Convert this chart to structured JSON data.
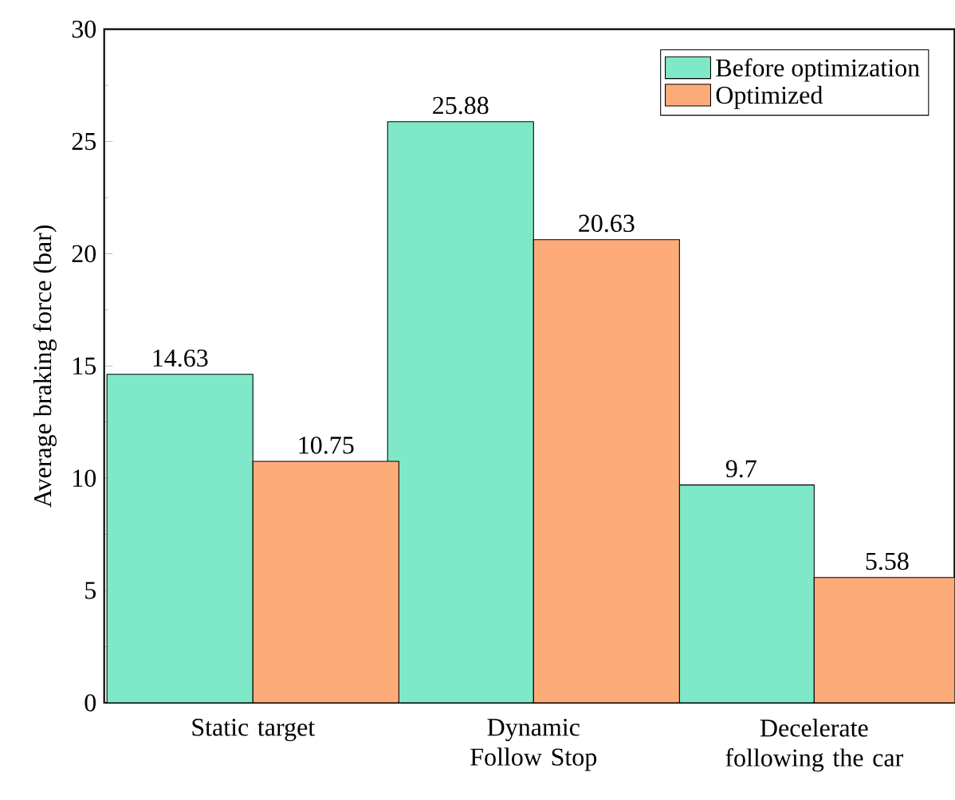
{
  "chart_data": {
    "type": "bar",
    "ylabel": "Average braking force (bar)",
    "categories": [
      "Static target",
      "Dynamic Follow Stop",
      "Decelerate following the car"
    ],
    "series": [
      {
        "name": "Before optimization",
        "color": "#7fe8c8",
        "values": [
          14.63,
          25.88,
          9.7
        ]
      },
      {
        "name": "Optimized",
        "color": "#fdab78",
        "values": [
          10.75,
          20.63,
          5.58
        ]
      }
    ],
    "ylim": [
      0,
      30
    ],
    "yticks": [
      0,
      5,
      10,
      15,
      20,
      25,
      30
    ],
    "data_labels": true,
    "legend": "top right",
    "grid": false
  }
}
